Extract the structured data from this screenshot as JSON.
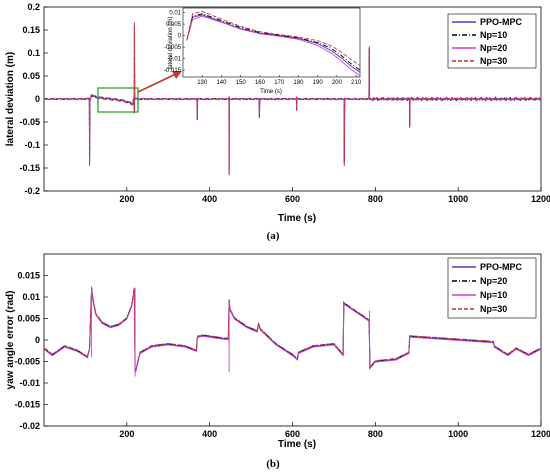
{
  "chart_data": [
    {
      "type": "line",
      "panel_label": "(a)",
      "xlabel": "Time (s)",
      "ylabel": "lateral deviation (m)",
      "xlim": [
        0,
        1200
      ],
      "ylim": [
        -0.2,
        0.2
      ],
      "xticks": [
        "200",
        "400",
        "600",
        "800",
        "1000",
        "1200"
      ],
      "yticks": [
        "-0.2",
        "-0.15",
        "-0.1",
        "-0.05",
        "0",
        "0.05",
        "0.1",
        "0.15",
        "0.2"
      ],
      "grid": false,
      "legend_placement": "top-right",
      "colors": {
        "PPO-MPC": "#3f3fd6",
        "Np=10": "#000000",
        "Np=20": "#d23cd2",
        "Np=30": "#c0392b"
      },
      "series": [
        {
          "name": "PPO-MPC",
          "style": "solid"
        },
        {
          "name": "Np=10",
          "style": "dashdot"
        },
        {
          "name": "Np=20",
          "style": "solid"
        },
        {
          "name": "Np=30",
          "style": "dashed"
        }
      ],
      "events": [
        {
          "t": 110,
          "up": 0.0,
          "down": -0.14
        },
        {
          "t": 218,
          "up": 0.16,
          "down": -0.03
        },
        {
          "t": 370,
          "up": 0.0,
          "down": -0.045
        },
        {
          "t": 447,
          "up": 0.005,
          "down": -0.16
        },
        {
          "t": 520,
          "up": 0.0,
          "down": -0.04
        },
        {
          "t": 610,
          "up": 0.005,
          "down": -0.025
        },
        {
          "t": 725,
          "up": 0.0,
          "down": -0.14
        },
        {
          "t": 785,
          "up": 0.11,
          "down": 0.0
        },
        {
          "t": 883,
          "up": 0.0,
          "down": -0.06
        },
        {
          "t": 1090,
          "up": 0.005,
          "down": 0.0
        }
      ],
      "inset": {
        "xlabel": "Time (s)",
        "ylabel": "lateral deviation (m)",
        "xlim": [
          120,
          212
        ],
        "ylim": [
          -0.018,
          0.012
        ],
        "xticks": [
          "130",
          "140",
          "150",
          "160",
          "170",
          "180",
          "190",
          "200",
          "210"
        ],
        "yticks": [
          "0.01",
          "0.005",
          "0",
          "-0.005",
          "-0.01",
          "-0.015"
        ],
        "curves": [
          {
            "name": "PPO-MPC",
            "t": [
              122,
              125,
              130,
              140,
              150,
              160,
              170,
              180,
              190,
              197,
              202,
              207,
              212
            ],
            "y": [
              -0.002,
              0.008,
              0.009,
              0.006,
              0.003,
              0.001,
              0.0,
              -0.0012,
              -0.0035,
              -0.0065,
              -0.0095,
              -0.013,
              -0.016
            ]
          },
          {
            "name": "Np=10",
            "t": [
              122,
              125,
              130,
              140,
              150,
              160,
              170,
              180,
              190,
              197,
              202,
              207,
              212
            ],
            "y": [
              -0.002,
              0.0085,
              0.0095,
              0.0065,
              0.0035,
              0.0013,
              0.0002,
              -0.001,
              -0.003,
              -0.0055,
              -0.0085,
              -0.012,
              -0.015
            ]
          },
          {
            "name": "Np=20",
            "t": [
              122,
              125,
              130,
              140,
              150,
              160,
              170,
              180,
              190,
              197,
              202,
              207,
              212
            ],
            "y": [
              -0.002,
              0.007,
              0.0085,
              0.0058,
              0.0028,
              0.0008,
              -0.0003,
              -0.0016,
              -0.0043,
              -0.0076,
              -0.0108,
              -0.0145,
              -0.0175
            ]
          },
          {
            "name": "Np=30",
            "t": [
              122,
              125,
              130,
              140,
              150,
              160,
              170,
              180,
              190,
              197,
              202,
              207,
              212
            ],
            "y": [
              -0.002,
              0.0095,
              0.0105,
              0.0072,
              0.004,
              0.0017,
              0.0005,
              -0.0006,
              -0.0022,
              -0.0044,
              -0.007,
              -0.0102,
              -0.013
            ]
          }
        ]
      }
    },
    {
      "type": "line",
      "panel_label": "(b)",
      "xlabel": "Time (s)",
      "ylabel": "yaw angle error (rad)",
      "xlim": [
        0,
        1200
      ],
      "ylim": [
        -0.02,
        0.02
      ],
      "xticks": [
        "200",
        "400",
        "600",
        "800",
        "1000",
        "1200"
      ],
      "yticks": [
        "-0.02",
        "-0.015",
        "-0.01",
        "-0.005",
        "0",
        "0.005",
        "0.01",
        "0.015"
      ],
      "grid": false,
      "legend_placement": "top-right",
      "colors": {
        "PPO-MPC": "#3f3fd6",
        "Np=20": "#000000",
        "Np=10": "#d23cd2",
        "Np=30": "#c0392b"
      },
      "series": [
        {
          "name": "PPO-MPC",
          "style": "solid"
        },
        {
          "name": "Np=20",
          "style": "dashdot"
        },
        {
          "name": "Np=10",
          "style": "solid"
        },
        {
          "name": "Np=30",
          "style": "dashed"
        }
      ],
      "curve": {
        "t": [
          0,
          20,
          50,
          80,
          105,
          110,
          115,
          118,
          125,
          140,
          160,
          180,
          200,
          212,
          218,
          220,
          222,
          232,
          260,
          300,
          340,
          368,
          370,
          372,
          385,
          420,
          445,
          447,
          449,
          460,
          490,
          515,
          518,
          522,
          560,
          600,
          612,
          614,
          650,
          700,
          722,
          724,
          785,
          787,
          800,
          850,
          881,
          883,
          1085,
          1087,
          1095,
          1120,
          1140,
          1170,
          1200
        ],
        "y": [
          -0.002,
          -0.0035,
          -0.0015,
          -0.0025,
          -0.004,
          -0.002,
          0.012,
          0.0095,
          0.006,
          0.004,
          0.003,
          0.0035,
          0.005,
          0.008,
          0.012,
          -0.0075,
          -0.007,
          -0.003,
          -0.0015,
          -0.001,
          -0.0015,
          -0.0025,
          0.0002,
          0.0008,
          0.001,
          0.0005,
          0.0002,
          0.0092,
          0.007,
          0.005,
          0.003,
          0.002,
          0.0038,
          0.0025,
          -0.001,
          -0.0035,
          -0.0045,
          -0.003,
          -0.0015,
          -0.001,
          -0.0035,
          0.0085,
          0.0045,
          -0.0065,
          -0.005,
          -0.0045,
          -0.003,
          0.0008,
          -0.0005,
          -0.0015,
          -0.002,
          -0.0035,
          -0.002,
          -0.0035,
          -0.002
        ],
        "spikes": [
          {
            "t": 115,
            "hi": 0.0125,
            "lo": -0.004
          },
          {
            "t": 220,
            "hi": 0.012,
            "lo": -0.0085
          },
          {
            "t": 447,
            "hi": 0.0095,
            "lo": -0.0075
          },
          {
            "t": 723,
            "hi": 0.009,
            "lo": -0.0035
          },
          {
            "t": 786,
            "hi": 0.0068,
            "lo": -0.0068
          }
        ]
      }
    }
  ]
}
